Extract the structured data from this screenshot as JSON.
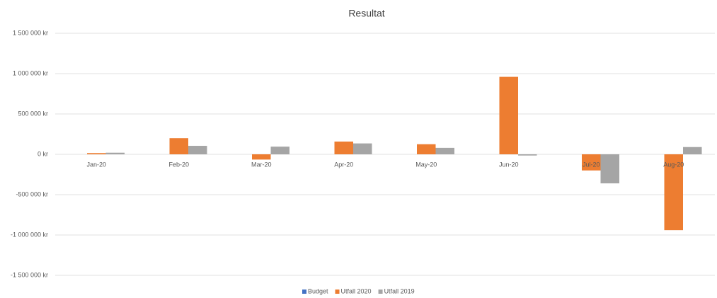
{
  "chart_data": {
    "type": "bar",
    "title": "Resultat",
    "categories": [
      "Jan-20",
      "Feb-20",
      "Mar-20",
      "Apr-20",
      "May-20",
      "Jun-20",
      "Jul-20",
      "Aug-20"
    ],
    "series": [
      {
        "name": "Budget",
        "color": "#4472c4",
        "values": [
          0,
          0,
          0,
          0,
          0,
          0,
          0,
          0
        ]
      },
      {
        "name": "Utfall 2020",
        "color": "#ed7d31",
        "values": [
          15000,
          200000,
          -65000,
          158000,
          125000,
          960000,
          -200000,
          -940000
        ]
      },
      {
        "name": "Utfall 2019",
        "color": "#a5a5a5",
        "values": [
          20000,
          105000,
          95000,
          135000,
          80000,
          -15000,
          -360000,
          90000
        ]
      }
    ],
    "ylim": [
      -1500000,
      1500000
    ],
    "yticks": [
      {
        "value": -1500000,
        "label": "-1 500 000 kr"
      },
      {
        "value": -1000000,
        "label": "-1 000 000 kr"
      },
      {
        "value": -500000,
        "label": "-500 000 kr"
      },
      {
        "value": 0,
        "label": "0 kr"
      },
      {
        "value": 500000,
        "label": "500 000 kr"
      },
      {
        "value": 1000000,
        "label": "1 000 000 kr"
      },
      {
        "value": 1500000,
        "label": "1 500 000 kr"
      }
    ],
    "grid": true,
    "legend": "bottom"
  }
}
